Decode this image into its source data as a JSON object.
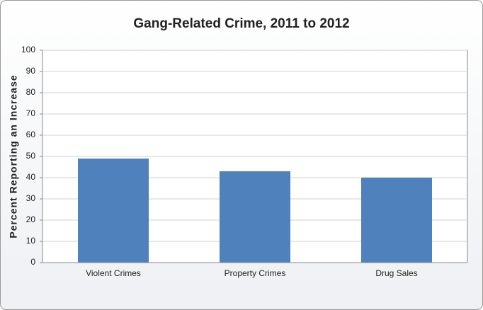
{
  "chart_data": {
    "type": "bar",
    "title": "Gang-Related Crime, 2011 to 2012",
    "y_label": "Percent Reporting an Increase",
    "categories": [
      "Violent Crimes",
      "Property Crimes",
      "Drug Sales"
    ],
    "values": [
      49,
      43,
      40
    ],
    "color": "#4f81bd",
    "ylim": [
      0,
      100
    ],
    "yticks": [
      0,
      10,
      20,
      30,
      40,
      50,
      60,
      70,
      80,
      90,
      100
    ],
    "grid": true
  }
}
